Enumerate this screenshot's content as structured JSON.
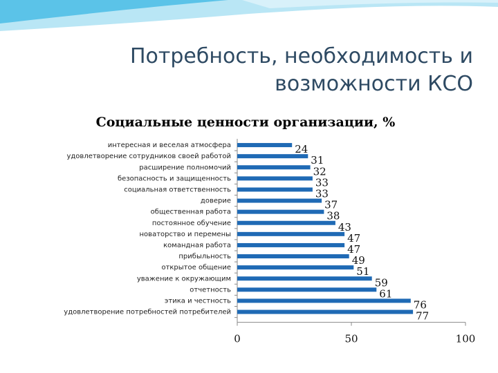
{
  "slide": {
    "title_line1": "Потребность, необходимость и",
    "title_line2": "возможности КСО"
  },
  "colors": {
    "bar": "#1f6ab5",
    "title": "#2e4a63",
    "deco": "#5bc3e8"
  },
  "chart_data": {
    "type": "bar",
    "orientation": "horizontal",
    "title": "Социальные ценности организации, %",
    "categories": [
      "интересная и веселая атмосфера",
      "удовлетворение сотрудников своей работой",
      "расширение полномочий",
      "безопасность и защищенность",
      "социальная ответственность",
      "доверие",
      "общественная работа",
      "постоянное обучение",
      "новаторство и перемены",
      "командная работа",
      "прибыльность",
      "открытое общение",
      "уважение к окружающим",
      "отчетность",
      "этика и честность",
      "удовлетворение потребностей потребителей"
    ],
    "values": [
      24,
      31,
      32,
      33,
      33,
      37,
      38,
      43,
      47,
      47,
      49,
      51,
      59,
      61,
      76,
      77
    ],
    "xlim": [
      0,
      100
    ],
    "xticks": [
      0,
      50,
      100
    ],
    "grid": false,
    "legend": "none"
  }
}
